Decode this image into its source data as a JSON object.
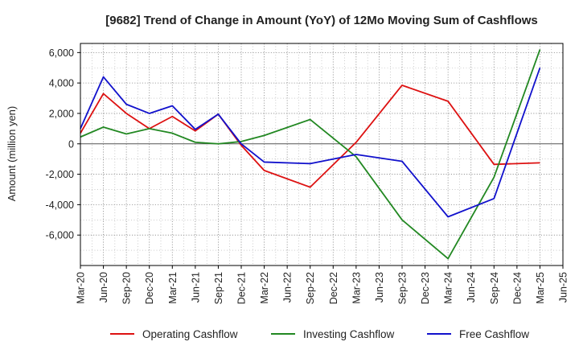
{
  "chart_data": {
    "type": "line",
    "title": "[9682]  Trend of Change in Amount (YoY) of 12Mo Moving Sum of Cashflows",
    "xlabel": "",
    "ylabel": "Amount (million yen)",
    "ylim": [
      -8000,
      6600
    ],
    "yticks": [
      -6000,
      -4000,
      -2000,
      0,
      2000,
      4000,
      6000
    ],
    "ytick_labels": [
      "-6,000",
      "-4,000",
      "-2,000",
      "0",
      "2,000",
      "4,000",
      "6,000"
    ],
    "categories": [
      "Mar-20",
      "Jun-20",
      "Sep-20",
      "Dec-20",
      "Mar-21",
      "Jun-21",
      "Sep-21",
      "Dec-21",
      "Mar-22",
      "Jun-22",
      "Sep-22",
      "Dec-22",
      "Mar-23",
      "Jun-23",
      "Sep-23",
      "Dec-23",
      "Mar-24",
      "Jun-24",
      "Sep-24",
      "Dec-24",
      "Mar-25",
      "Jun-25"
    ],
    "grid": true,
    "legend_position": "bottom",
    "series": [
      {
        "name": "Operating Cashflow",
        "color": "#dd1111",
        "values": [
          700,
          3300,
          2000,
          1000,
          1800,
          850,
          1950,
          -100,
          -1750,
          null,
          -2850,
          null,
          100,
          null,
          3850,
          null,
          2800,
          null,
          -1350,
          null,
          -1250,
          null
        ]
      },
      {
        "name": "Investing Cashflow",
        "color": "#228822",
        "values": [
          450,
          1100,
          650,
          1000,
          700,
          100,
          0,
          150,
          550,
          null,
          1600,
          null,
          -850,
          null,
          -5000,
          null,
          -7550,
          null,
          -2200,
          null,
          6200,
          null
        ]
      },
      {
        "name": "Free Cashflow",
        "color": "#1111cc",
        "values": [
          1000,
          4400,
          2600,
          2000,
          2500,
          950,
          1950,
          0,
          -1200,
          null,
          -1300,
          null,
          -700,
          null,
          -1150,
          null,
          -4800,
          null,
          -3600,
          null,
          5000,
          null
        ]
      }
    ]
  }
}
